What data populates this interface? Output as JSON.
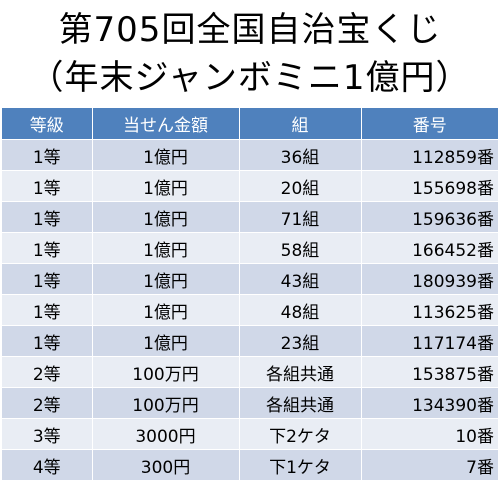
{
  "title_line1": "第705回全国自治宝くじ",
  "title_line2": "（年末ジャンボミニ1億円）",
  "table": {
    "headers": [
      "等級",
      "当せん金額",
      "組",
      "番号"
    ],
    "rows": [
      [
        "1等",
        "1億円",
        "36組",
        "112859番"
      ],
      [
        "1等",
        "1億円",
        "20組",
        "155698番"
      ],
      [
        "1等",
        "1億円",
        "71組",
        "159636番"
      ],
      [
        "1等",
        "1億円",
        "58組",
        "166452番"
      ],
      [
        "1等",
        "1億円",
        "43組",
        "180939番"
      ],
      [
        "1等",
        "1億円",
        "48組",
        "113625番"
      ],
      [
        "1等",
        "1億円",
        "23組",
        "117174番"
      ],
      [
        "2等",
        "100万円",
        "各組共通",
        "153875番"
      ],
      [
        "2等",
        "100万円",
        "各組共通",
        "134390番"
      ],
      [
        "3等",
        "3000円",
        "下2ケタ",
        "10番"
      ],
      [
        "4等",
        "300円",
        "下1ケタ",
        "7番"
      ]
    ]
  },
  "colors": {
    "header_bg": "#4f81bd",
    "row_odd": "#d0d8e8",
    "row_even": "#e9edf4"
  }
}
